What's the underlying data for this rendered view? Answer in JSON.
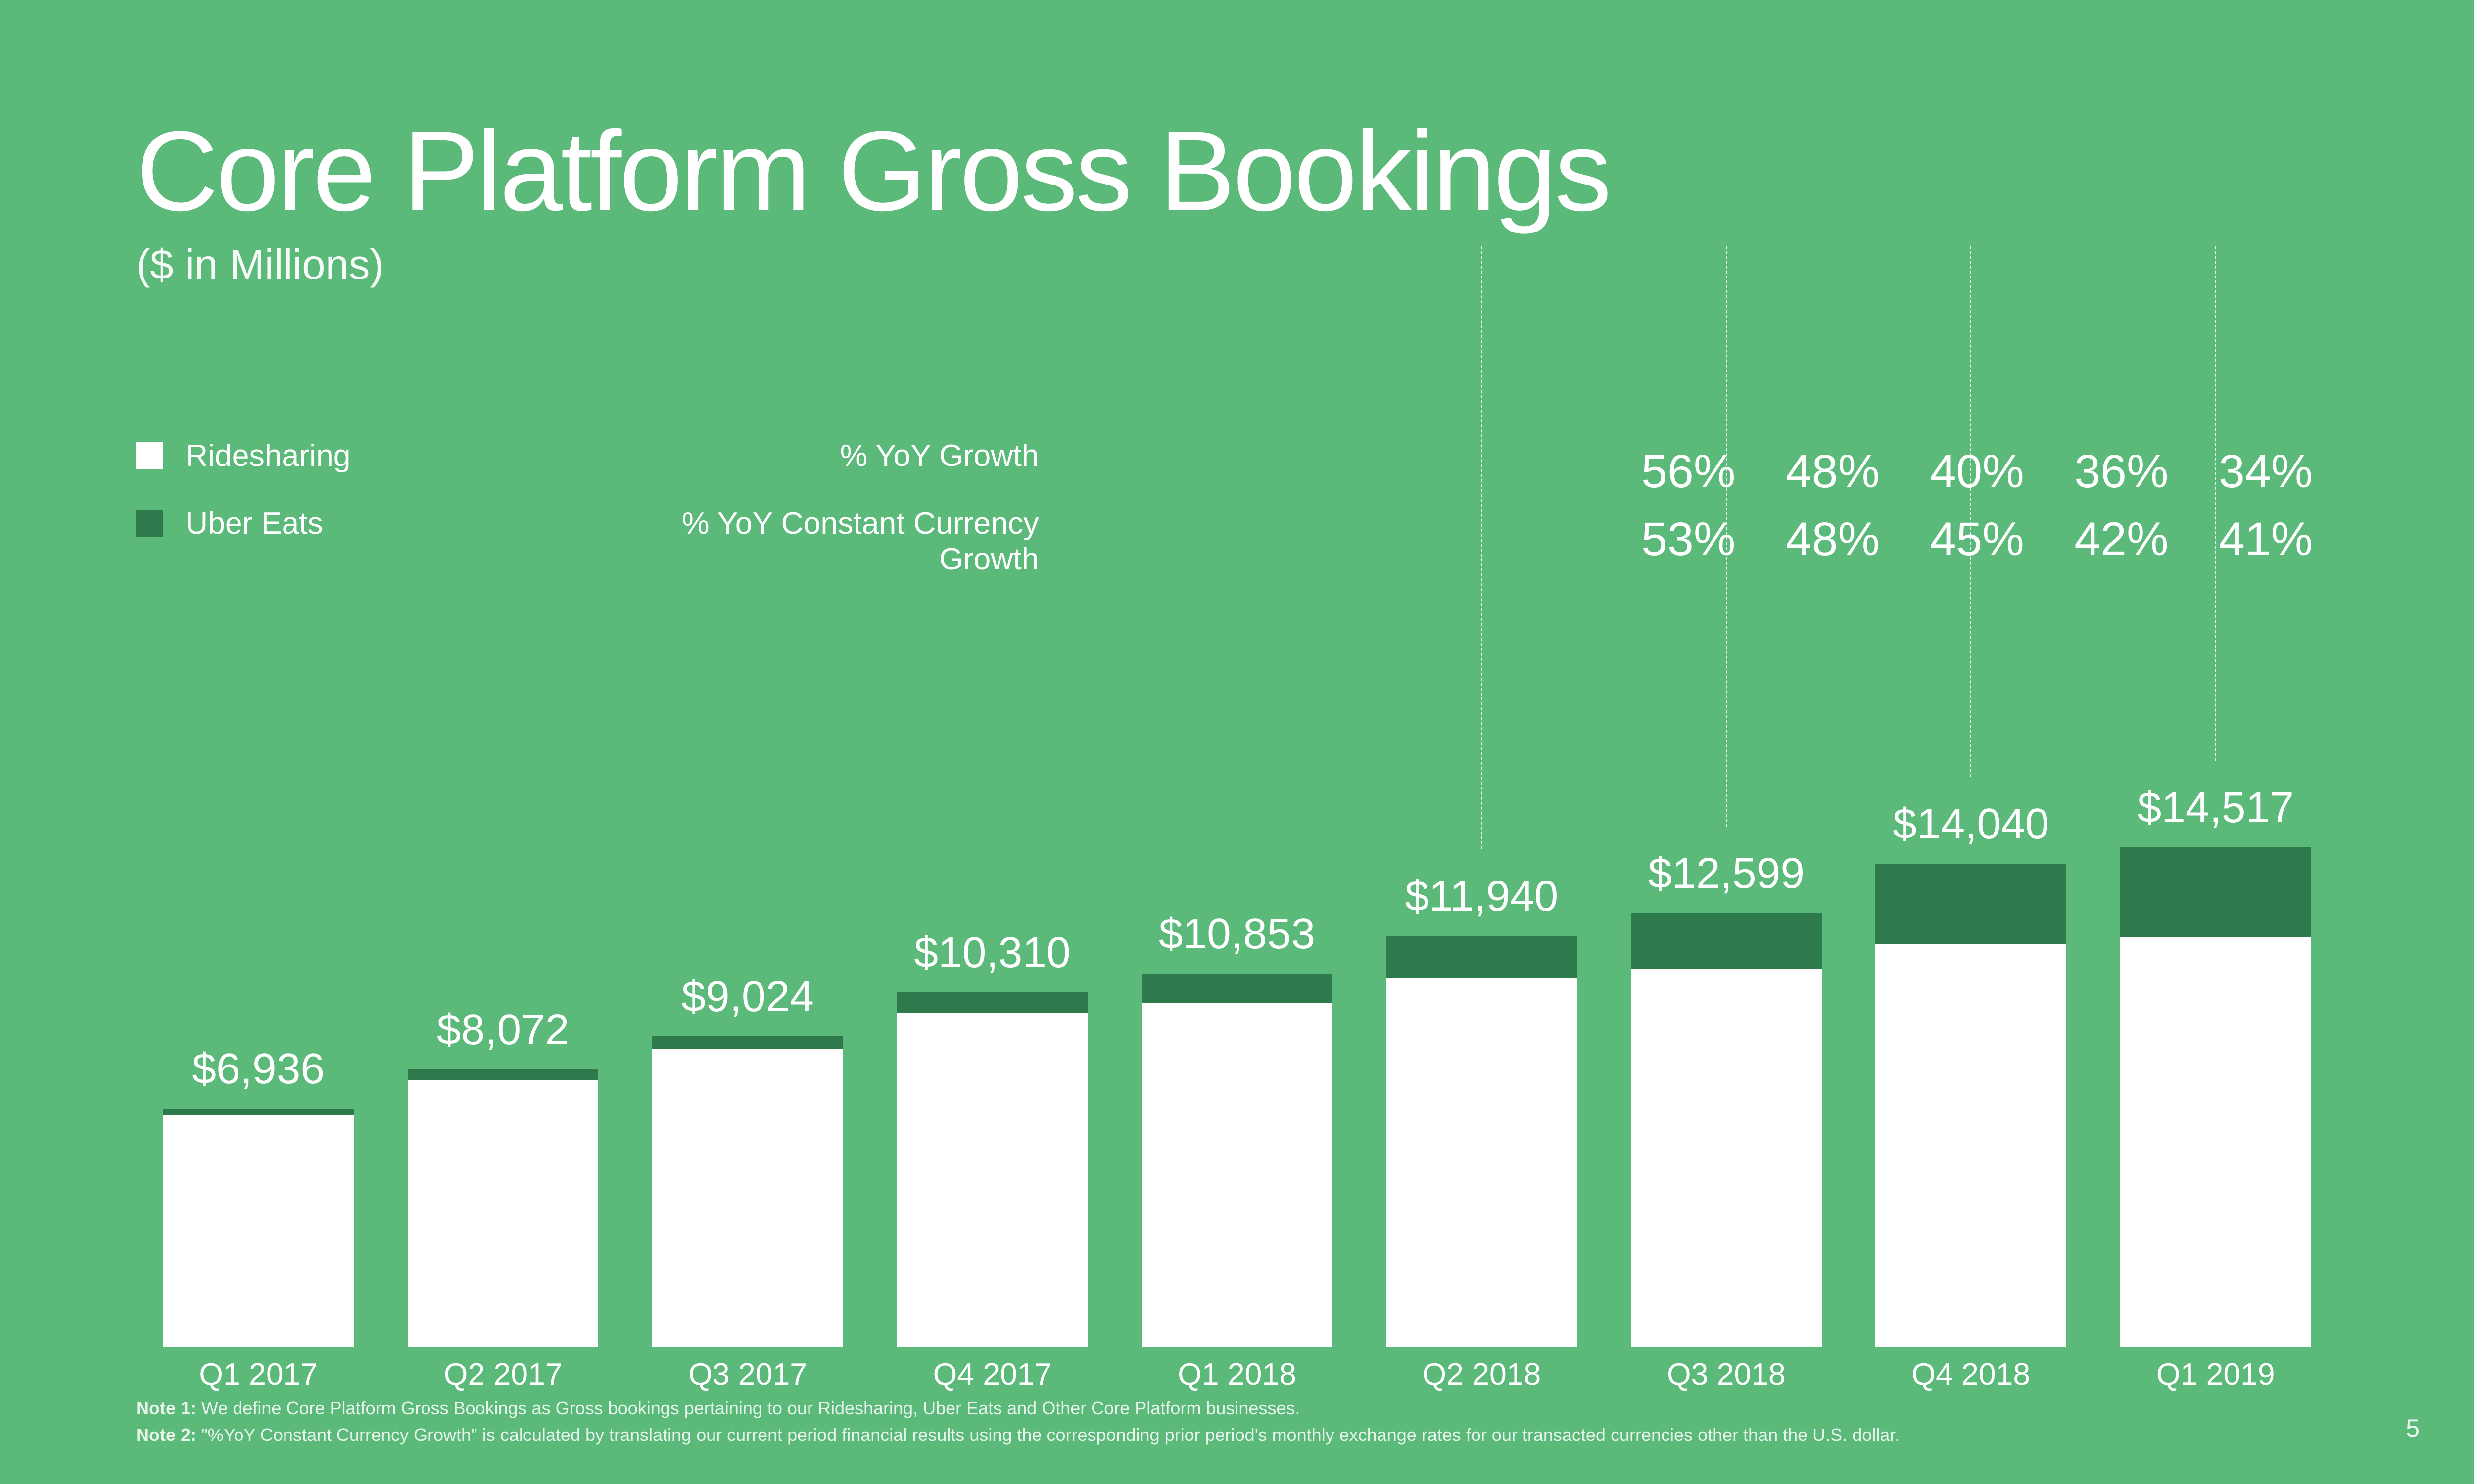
{
  "slide": {
    "title": "Core Platform Gross Bookings",
    "subtitle": "($ in Millions)",
    "background_color": "#5bb97a",
    "text_color": "#ffffff",
    "page_number": "5"
  },
  "legend": {
    "items": [
      {
        "label": "Ridesharing",
        "color": "#ffffff"
      },
      {
        "label": "Uber Eats",
        "color": "#2f7a4d"
      }
    ]
  },
  "growth": {
    "row1_label": "% YoY Growth",
    "row2_label": "% YoY Constant Currency Growth",
    "columns": [
      {
        "has": false
      },
      {
        "has": false
      },
      {
        "has": false
      },
      {
        "has": false
      },
      {
        "has": true,
        "yoy": "56%",
        "cc": "53%"
      },
      {
        "has": true,
        "yoy": "48%",
        "cc": "48%"
      },
      {
        "has": true,
        "yoy": "40%",
        "cc": "45%"
      },
      {
        "has": true,
        "yoy": "36%",
        "cc": "42%"
      },
      {
        "has": true,
        "yoy": "34%",
        "cc": "41%"
      }
    ]
  },
  "chart": {
    "type": "stacked-bar",
    "categories": [
      "Q1 2017",
      "Q2 2017",
      "Q3 2017",
      "Q4 2017",
      "Q1 2018",
      "Q2 2018",
      "Q3 2018",
      "Q4 2018",
      "Q1 2019"
    ],
    "value_labels": [
      "$6,936",
      "$8,072",
      "$9,024",
      "$10,310",
      "$10,853",
      "$11,940",
      "$12,599",
      "$14,040",
      "$14,517"
    ],
    "totals": [
      6936,
      8072,
      9024,
      10310,
      10853,
      11940,
      12599,
      14040,
      14517
    ],
    "ridesharing": [
      6750,
      7750,
      8650,
      9700,
      10000,
      10700,
      11000,
      11700,
      11900
    ],
    "uber_eats": [
      186,
      322,
      374,
      610,
      853,
      1240,
      1599,
      2340,
      2617
    ],
    "max_scale": 15500,
    "colors": {
      "ridesharing": "#ffffff",
      "uber_eats": "#2f7a4d"
    },
    "bar_width_pct": 78,
    "baseline_color": "rgba(255,255,255,0.9)",
    "dashed_connectors": [
      false,
      false,
      false,
      false,
      true,
      true,
      true,
      true,
      true
    ],
    "label_fontsize_vw": 1.75,
    "xaxis_fontsize_vw": 1.25
  },
  "notes": {
    "note1_label": "Note 1:",
    "note1_text": " We define Core Platform Gross Bookings as Gross bookings pertaining to our Ridesharing, Uber Eats and Other Core Platform businesses.",
    "note2_label": "Note 2:",
    "note2_text": " \"%YoY Constant Currency Growth\" is calculated by translating our current period financial results using the corresponding prior period's monthly exchange rates for our transacted currencies other than the U.S. dollar."
  }
}
